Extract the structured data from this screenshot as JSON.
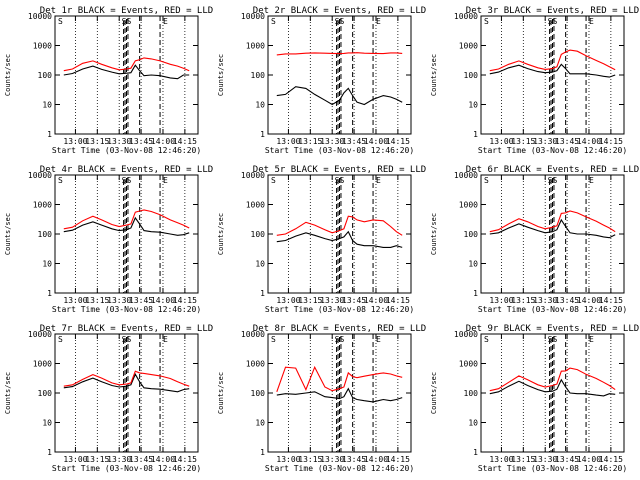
{
  "figure": {
    "ylabel": "Counts/sec",
    "xlabel": "Start Time (03-Nov-08 12:46:20)",
    "x_tick_labels": [
      "13:00",
      "13:15",
      "13:30",
      "13:45",
      "14:00",
      "14:15"
    ],
    "y_tick_labels": [
      "1",
      "10",
      "100",
      "1000",
      "10000"
    ],
    "markers": {
      "left": "S",
      "middle": "SS",
      "right": "E"
    }
  },
  "chart_data": [
    {
      "type": "line",
      "title": "Det 1r  BLACK = Events, RED = LLD",
      "xlabel": "Start Time (03-Nov-08 12:46:20)",
      "ylabel": "Counts/sec",
      "ylim": [
        1,
        10000
      ],
      "yscale": "log",
      "x": [
        "12:52",
        "12:58",
        "13:05",
        "13:12",
        "13:18",
        "13:25",
        "13:30",
        "13:35",
        "13:38",
        "13:41",
        "13:44",
        "13:47",
        "13:52",
        "13:58",
        "14:05",
        "14:10",
        "14:14",
        "14:18"
      ],
      "series": [
        {
          "name": "BLACK",
          "color": "#000000",
          "values": [
            100,
            112,
            160,
            200,
            155,
            125,
            110,
            115,
            120,
            215,
            140,
            95,
            100,
            95,
            80,
            75,
            100,
            100
          ]
        },
        {
          "name": "RED",
          "color": "#ff0000",
          "values": [
            140,
            160,
            250,
            300,
            230,
            175,
            150,
            160,
            170,
            300,
            330,
            380,
            350,
            300,
            230,
            200,
            170,
            140
          ]
        }
      ]
    },
    {
      "type": "line",
      "title": "Det 2r  BLACK = Events, RED = LLD",
      "xlabel": "Start Time (03-Nov-08 12:46:20)",
      "ylabel": "Counts/sec",
      "ylim": [
        1,
        10000
      ],
      "yscale": "log",
      "x": [
        "12:52",
        "12:58",
        "13:05",
        "13:12",
        "13:18",
        "13:25",
        "13:30",
        "13:35",
        "13:38",
        "13:41",
        "13:44",
        "13:47",
        "13:52",
        "13:58",
        "14:05",
        "14:10",
        "14:14",
        "14:18"
      ],
      "series": [
        {
          "name": "BLACK",
          "color": "#000000",
          "values": [
            20,
            22,
            40,
            35,
            22,
            14,
            10,
            14,
            25,
            35,
            20,
            12,
            10,
            15,
            20,
            18,
            15,
            12
          ]
        },
        {
          "name": "RED",
          "color": "#ff0000",
          "values": [
            480,
            520,
            520,
            550,
            560,
            550,
            540,
            530,
            540,
            560,
            560,
            570,
            550,
            540,
            530,
            560,
            560,
            540
          ]
        }
      ]
    },
    {
      "type": "line",
      "title": "Det 3r  BLACK = Events, RED = LLD",
      "xlabel": "Start Time (03-Nov-08 12:46:20)",
      "ylabel": "Counts/sec",
      "ylim": [
        1,
        10000
      ],
      "yscale": "log",
      "x": [
        "12:52",
        "12:58",
        "13:05",
        "13:12",
        "13:18",
        "13:25",
        "13:30",
        "13:35",
        "13:38",
        "13:41",
        "13:44",
        "13:47",
        "13:52",
        "13:58",
        "14:05",
        "14:10",
        "14:14",
        "14:18"
      ],
      "series": [
        {
          "name": "BLACK",
          "color": "#000000",
          "values": [
            110,
            125,
            175,
            215,
            165,
            130,
            120,
            125,
            140,
            230,
            165,
            110,
            110,
            110,
            100,
            90,
            85,
            100
          ]
        },
        {
          "name": "RED",
          "color": "#ff0000",
          "values": [
            140,
            160,
            230,
            300,
            230,
            175,
            155,
            165,
            190,
            500,
            600,
            700,
            640,
            450,
            310,
            240,
            190,
            150
          ]
        }
      ]
    },
    {
      "type": "line",
      "title": "Det 4r  BLACK = Events, RED = LLD",
      "xlabel": "Start Time (03-Nov-08 12:46:20)",
      "ylabel": "Counts/sec",
      "ylim": [
        1,
        10000
      ],
      "yscale": "log",
      "x": [
        "12:52",
        "12:58",
        "13:05",
        "13:12",
        "13:18",
        "13:25",
        "13:30",
        "13:35",
        "13:38",
        "13:41",
        "13:44",
        "13:47",
        "13:52",
        "13:58",
        "14:05",
        "14:10",
        "14:14",
        "14:18"
      ],
      "series": [
        {
          "name": "BLACK",
          "color": "#000000",
          "values": [
            120,
            135,
            200,
            260,
            200,
            150,
            130,
            140,
            160,
            350,
            220,
            130,
            120,
            115,
            100,
            90,
            95,
            110
          ]
        },
        {
          "name": "RED",
          "color": "#ff0000",
          "values": [
            150,
            170,
            280,
            400,
            300,
            210,
            180,
            200,
            220,
            550,
            600,
            650,
            580,
            450,
            300,
            240,
            200,
            160
          ]
        }
      ]
    },
    {
      "type": "line",
      "title": "Det 5r  BLACK = Events, RED = LLD",
      "xlabel": "Start Time (03-Nov-08 12:46:20)",
      "ylabel": "Counts/sec",
      "ylim": [
        1,
        10000
      ],
      "yscale": "log",
      "x": [
        "12:52",
        "12:58",
        "13:05",
        "13:12",
        "13:18",
        "13:25",
        "13:30",
        "13:35",
        "13:38",
        "13:41",
        "13:44",
        "13:47",
        "13:52",
        "13:58",
        "14:05",
        "14:10",
        "14:14",
        "14:18"
      ],
      "series": [
        {
          "name": "BLACK",
          "color": "#000000",
          "values": [
            55,
            60,
            85,
            110,
            90,
            70,
            60,
            70,
            80,
            120,
            60,
            45,
            40,
            40,
            35,
            35,
            40,
            35
          ]
        },
        {
          "name": "RED",
          "color": "#ff0000",
          "values": [
            90,
            100,
            150,
            250,
            200,
            140,
            110,
            130,
            150,
            400,
            380,
            300,
            260,
            300,
            280,
            180,
            120,
            90
          ]
        }
      ]
    },
    {
      "type": "line",
      "title": "Det 6r  BLACK = Events, RED = LLD",
      "xlabel": "Start Time (03-Nov-08 12:46:20)",
      "ylabel": "Counts/sec",
      "ylim": [
        1,
        10000
      ],
      "yscale": "log",
      "x": [
        "12:52",
        "12:58",
        "13:05",
        "13:12",
        "13:18",
        "13:25",
        "13:30",
        "13:35",
        "13:38",
        "13:41",
        "13:44",
        "13:47",
        "13:52",
        "13:58",
        "14:05",
        "14:10",
        "14:14",
        "14:18"
      ],
      "series": [
        {
          "name": "BLACK",
          "color": "#000000",
          "values": [
            100,
            110,
            160,
            220,
            170,
            130,
            110,
            120,
            140,
            300,
            180,
            110,
            100,
            100,
            90,
            80,
            75,
            95
          ]
        },
        {
          "name": "RED",
          "color": "#ff0000",
          "values": [
            120,
            140,
            220,
            330,
            260,
            180,
            150,
            170,
            190,
            500,
            520,
            600,
            520,
            380,
            270,
            200,
            160,
            120
          ]
        }
      ]
    },
    {
      "type": "line",
      "title": "Det 7r  BLACK = Events, RED = LLD",
      "xlabel": "Start Time (03-Nov-08 12:46:20)",
      "ylabel": "Counts/sec",
      "ylim": [
        1,
        10000
      ],
      "yscale": "log",
      "x": [
        "12:52",
        "12:58",
        "13:05",
        "13:12",
        "13:18",
        "13:25",
        "13:30",
        "13:35",
        "13:38",
        "13:41",
        "13:44",
        "13:47",
        "13:52",
        "13:58",
        "14:05",
        "14:10",
        "14:14",
        "14:18"
      ],
      "series": [
        {
          "name": "BLACK",
          "color": "#000000",
          "values": [
            150,
            165,
            240,
            320,
            240,
            180,
            160,
            170,
            190,
            430,
            240,
            150,
            140,
            135,
            120,
            110,
            130,
            140
          ]
        },
        {
          "name": "RED",
          "color": "#ff0000",
          "values": [
            170,
            190,
            290,
            420,
            320,
            220,
            190,
            200,
            220,
            550,
            480,
            460,
            420,
            380,
            310,
            240,
            200,
            170
          ]
        }
      ]
    },
    {
      "type": "line",
      "title": "Det 8r  BLACK = Events, RED = LLD",
      "xlabel": "Start Time (03-Nov-08 12:46:20)",
      "ylabel": "Counts/sec",
      "ylim": [
        1,
        10000
      ],
      "yscale": "log",
      "x": [
        "12:52",
        "12:58",
        "13:05",
        "13:12",
        "13:18",
        "13:25",
        "13:30",
        "13:35",
        "13:38",
        "13:41",
        "13:44",
        "13:47",
        "13:52",
        "13:58",
        "14:05",
        "14:10",
        "14:14",
        "14:18"
      ],
      "series": [
        {
          "name": "BLACK",
          "color": "#000000",
          "values": [
            85,
            95,
            90,
            100,
            110,
            75,
            70,
            65,
            75,
            140,
            70,
            60,
            55,
            50,
            60,
            55,
            60,
            70
          ]
        },
        {
          "name": "RED",
          "color": "#ff0000",
          "values": [
            110,
            750,
            700,
            130,
            750,
            160,
            120,
            140,
            160,
            480,
            360,
            330,
            370,
            420,
            480,
            440,
            380,
            340
          ]
        }
      ]
    },
    {
      "type": "line",
      "title": "Det 9r  BLACK = Events, RED = LLD",
      "xlabel": "Start Time (03-Nov-08 12:46:20)",
      "ylabel": "Counts/sec",
      "ylim": [
        1,
        10000
      ],
      "yscale": "log",
      "x": [
        "12:52",
        "12:58",
        "13:05",
        "13:12",
        "13:18",
        "13:25",
        "13:30",
        "13:35",
        "13:38",
        "13:41",
        "13:44",
        "13:47",
        "13:52",
        "13:58",
        "14:05",
        "14:10",
        "14:14",
        "14:18"
      ],
      "series": [
        {
          "name": "BLACK",
          "color": "#000000",
          "values": [
            95,
            110,
            170,
            250,
            180,
            130,
            110,
            115,
            135,
            280,
            160,
            100,
            95,
            95,
            85,
            80,
            95,
            90
          ]
        },
        {
          "name": "RED",
          "color": "#ff0000",
          "values": [
            120,
            140,
            230,
            380,
            280,
            190,
            160,
            180,
            200,
            550,
            560,
            700,
            620,
            430,
            310,
            230,
            180,
            130
          ]
        }
      ]
    }
  ]
}
